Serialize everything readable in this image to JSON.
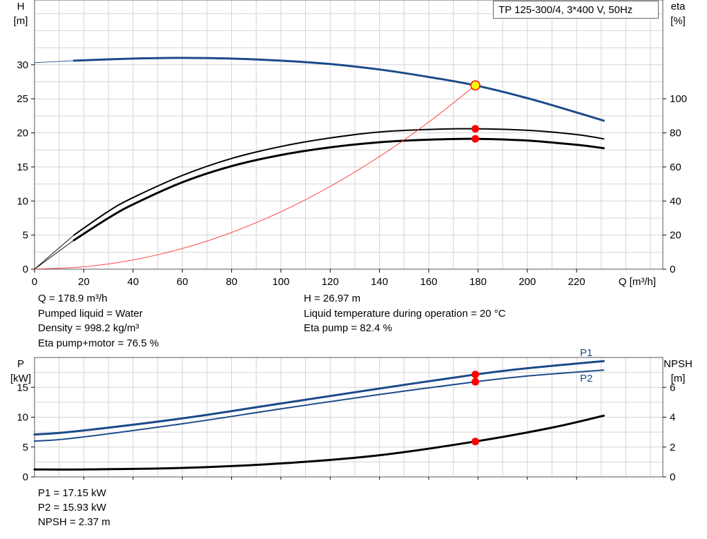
{
  "title": "TP 125-300/4, 3*400 V, 50Hz",
  "chart_data": [
    {
      "type": "line",
      "name_label": "head-efficiency",
      "xlabel": "Q [m³/h]",
      "ylabel_left": [
        "H",
        "[m]"
      ],
      "ylabel_right": [
        "eta",
        "[%]"
      ],
      "xlim": [
        0,
        255
      ],
      "ylim_left": [
        0,
        39.5
      ],
      "ylim_right": [
        0,
        158
      ],
      "x_ticks": [
        0,
        20,
        40,
        60,
        80,
        100,
        120,
        140,
        160,
        180,
        200,
        220
      ],
      "y_ticks_left": [
        0,
        5,
        10,
        15,
        20,
        25,
        30
      ],
      "y_ticks_right": [
        0,
        20,
        40,
        60,
        80,
        100
      ],
      "grid": true,
      "series": [
        {
          "axis": "left",
          "role": "head-curve",
          "color": "#1a4a8a",
          "x": [
            16,
            40,
            60,
            80,
            100,
            120,
            140,
            160,
            178.9,
            200,
            220,
            231
          ],
          "y": [
            30.6,
            30.9,
            31.0,
            30.9,
            30.6,
            30.1,
            29.3,
            28.2,
            26.97,
            25.1,
            23.0,
            21.8
          ]
        },
        {
          "axis": "left",
          "role": "head-curve-extension",
          "color": "#1a4a8a",
          "x": [
            0,
            16
          ],
          "y": [
            30.3,
            30.6
          ]
        },
        {
          "axis": "right",
          "role": "eta-pump",
          "color": "#000000",
          "x": [
            16,
            30,
            40,
            60,
            80,
            100,
            120,
            140,
            160,
            178.9,
            200,
            220,
            231
          ],
          "y": [
            20,
            34,
            42,
            55,
            65,
            72,
            77,
            80.5,
            82,
            82.4,
            81.5,
            79,
            76.5
          ]
        },
        {
          "axis": "right",
          "role": "eta-pump-motor",
          "color": "#000000",
          "x": [
            16,
            30,
            40,
            60,
            80,
            100,
            120,
            140,
            160,
            178.9,
            200,
            220,
            231
          ],
          "y": [
            17,
            30,
            38,
            51,
            60.5,
            67,
            71.5,
            74.5,
            76,
            76.5,
            75.5,
            73,
            71
          ]
        },
        {
          "axis": "right",
          "role": "eta-extension",
          "color": "#000000",
          "x": [
            0,
            16
          ],
          "y": [
            0,
            20
          ]
        },
        {
          "axis": "right",
          "role": "eta-extension",
          "color": "#000000",
          "x": [
            0,
            16
          ],
          "y": [
            0,
            17
          ]
        },
        {
          "axis": "left",
          "role": "system-curve",
          "color": "#ff3030",
          "x": [
            0,
            20,
            40,
            60,
            80,
            100,
            120,
            140,
            160,
            178.9
          ],
          "y": [
            0,
            0.34,
            1.35,
            3.03,
            5.39,
            8.43,
            12.14,
            16.52,
            21.58,
            26.97
          ]
        }
      ],
      "operating_points": [
        {
          "axis": "left",
          "x": 178.9,
          "y": 26.97,
          "color": "#ffff00",
          "ring": "#ff0000"
        },
        {
          "axis": "right",
          "x": 178.9,
          "y": 82.4,
          "color": "#ff0000"
        },
        {
          "axis": "right",
          "x": 178.9,
          "y": 76.5,
          "color": "#ff0000"
        }
      ]
    },
    {
      "type": "line",
      "name_label": "power-npsh",
      "ylabel_left": [
        "P",
        "[kW]"
      ],
      "ylabel_right": [
        "NPSH",
        "[m]"
      ],
      "xlim": [
        0,
        255
      ],
      "ylim_left": [
        0,
        20
      ],
      "ylim_right": [
        0,
        8
      ],
      "y_ticks_left": [
        0,
        5,
        10,
        15
      ],
      "y_ticks_right": [
        0,
        2,
        4,
        6
      ],
      "grid": true,
      "series": [
        {
          "name": "P1",
          "axis": "left",
          "role": "p1",
          "color": "#1a4a8a",
          "x": [
            0,
            16,
            60,
            100,
            140,
            178.9,
            200,
            231
          ],
          "y": [
            7.1,
            7.6,
            9.8,
            12.3,
            14.8,
            17.15,
            18.2,
            19.4
          ]
        },
        {
          "name": "P2",
          "axis": "left",
          "role": "p2",
          "color": "#1a4a8a",
          "x": [
            0,
            16,
            60,
            100,
            140,
            178.9,
            200,
            231
          ],
          "y": [
            6.0,
            6.5,
            8.9,
            11.4,
            13.8,
            15.93,
            16.9,
            17.9
          ]
        },
        {
          "axis": "right",
          "role": "npsh",
          "color": "#000000",
          "x": [
            0,
            20,
            60,
            100,
            140,
            178.9,
            210,
            231
          ],
          "y": [
            0.5,
            0.5,
            0.6,
            0.9,
            1.45,
            2.37,
            3.3,
            4.1
          ]
        }
      ],
      "operating_points": [
        {
          "axis": "left",
          "x": 178.9,
          "y": 17.15,
          "color": "#ff0000"
        },
        {
          "axis": "left",
          "x": 178.9,
          "y": 15.93,
          "color": "#ff0000"
        },
        {
          "axis": "right",
          "x": 178.9,
          "y": 2.37,
          "color": "#ff0000"
        }
      ]
    }
  ],
  "info_top": {
    "q": "Q = 178.9 m³/h",
    "liquid": "Pumped liquid = Water",
    "density": "Density = 998.2 kg/m³",
    "eta_pm": "Eta pump+motor = 76.5 %",
    "h": "H = 26.97 m",
    "temp": "Liquid temperature during operation = 20 °C",
    "eta_pump": "Eta pump = 82.4 %"
  },
  "info_bottom": {
    "p1": "P1 = 17.15 kW",
    "p2": "P2 = 15.93 kW",
    "npsh": "NPSH = 2.37 m"
  }
}
